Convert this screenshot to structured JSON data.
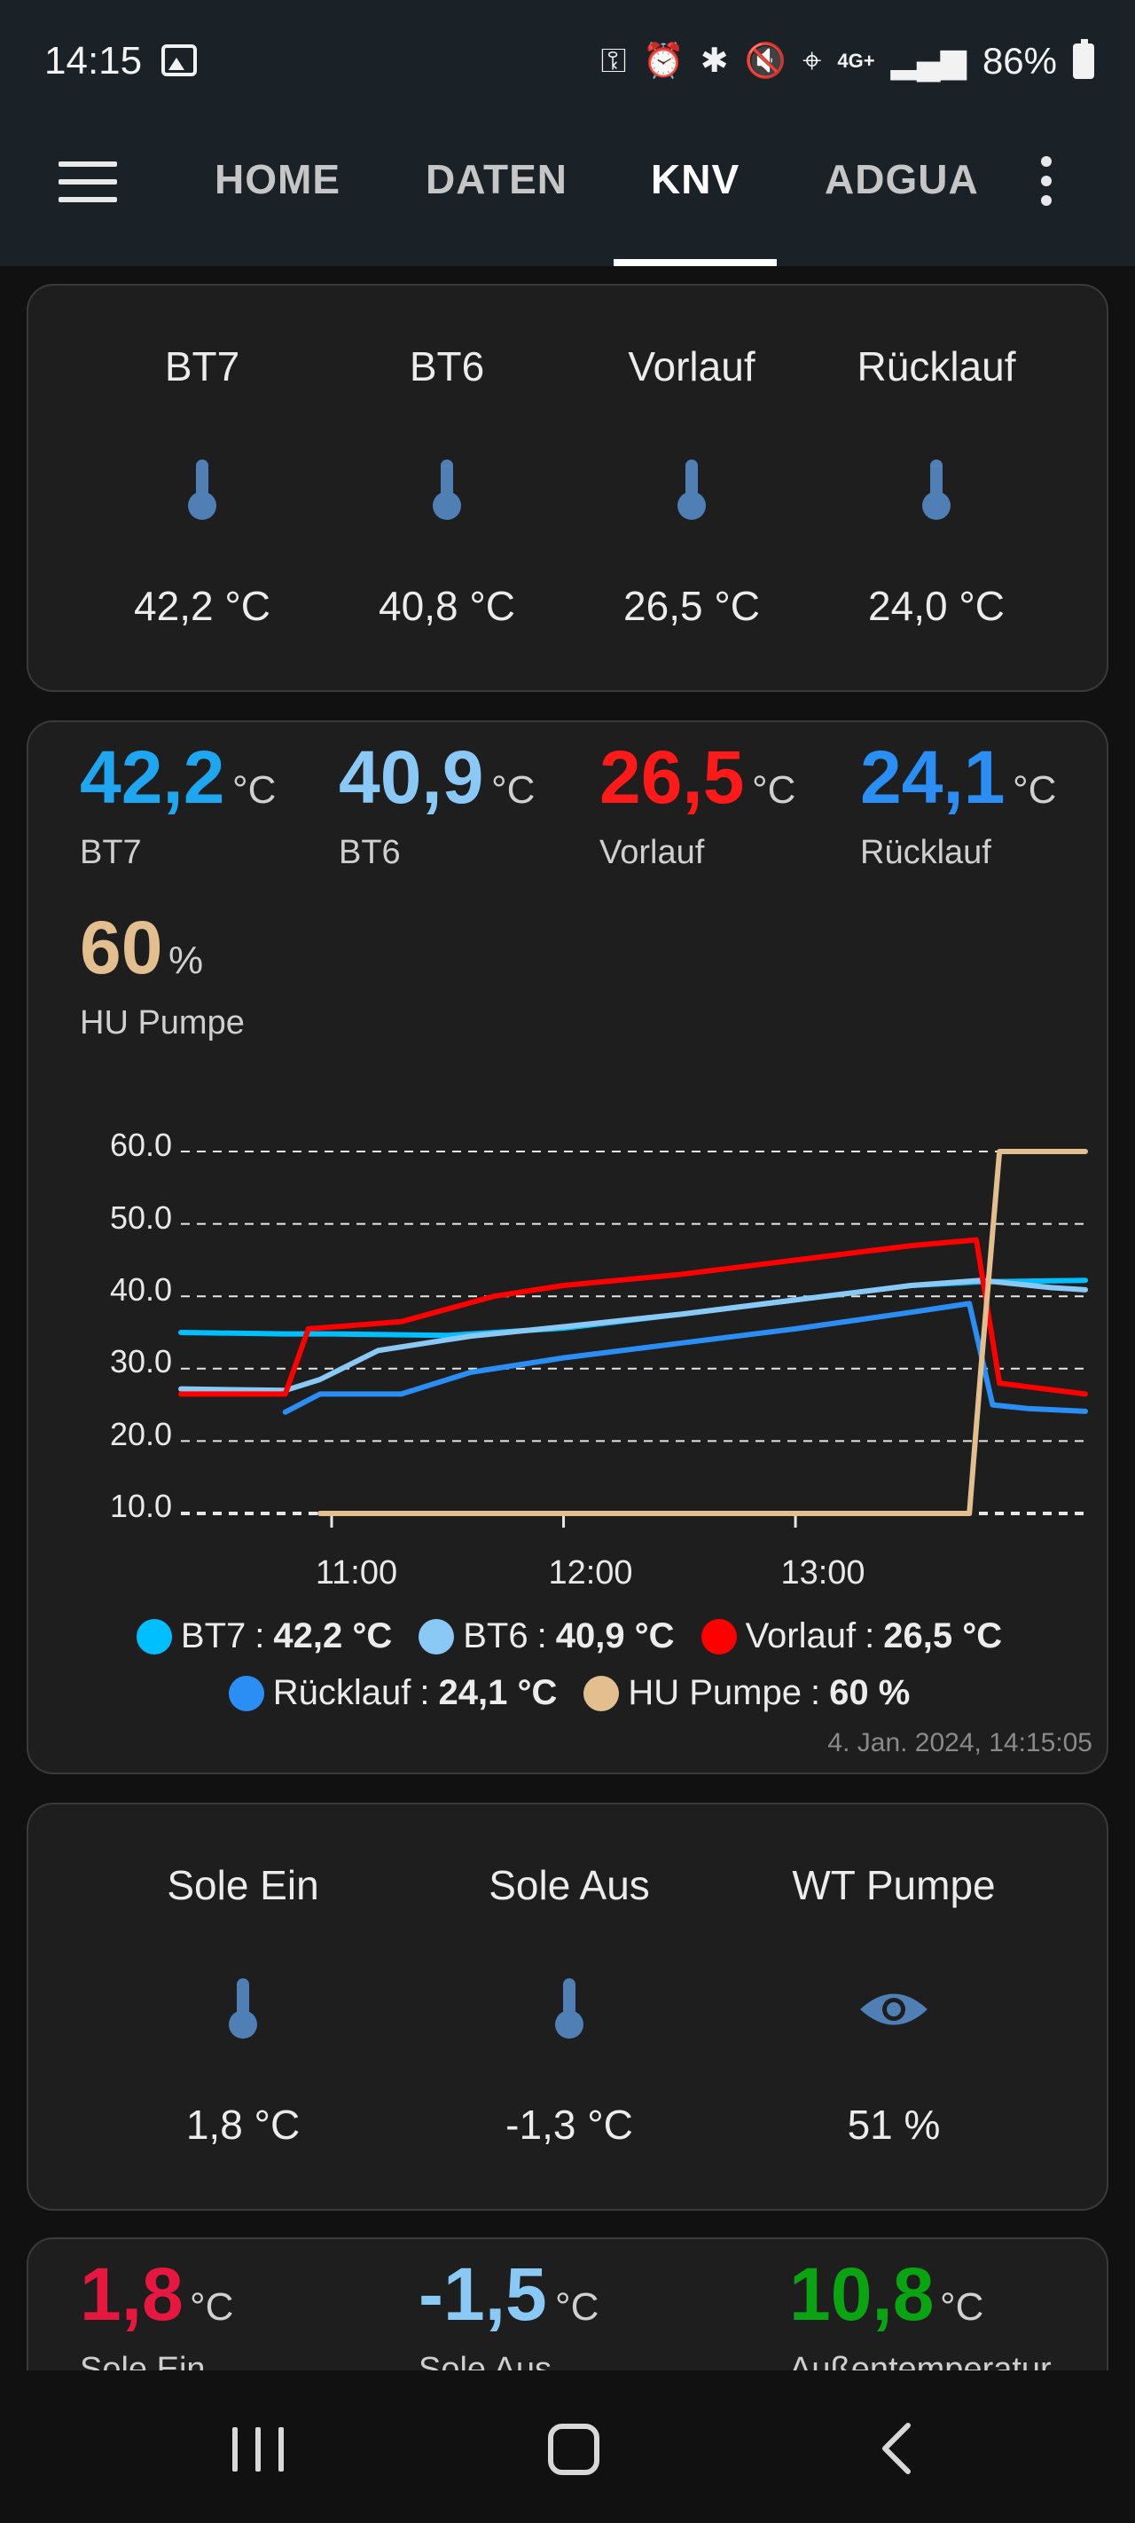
{
  "status": {
    "time": "14:15",
    "network": "4G+",
    "battery": "86%"
  },
  "tabs": [
    {
      "label": "HOME"
    },
    {
      "label": "DATEN"
    },
    {
      "label": "KNV"
    },
    {
      "label": "ADGUA"
    }
  ],
  "active_tab": "KNV",
  "temps_card": {
    "tiles": [
      {
        "label": "BT7",
        "value": "42,2 °C",
        "icon": "thermometer-icon"
      },
      {
        "label": "BT6",
        "value": "40,8 °C",
        "icon": "thermometer-icon"
      },
      {
        "label": "Vorlauf",
        "value": "26,5 °C",
        "icon": "thermometer-icon"
      },
      {
        "label": "Rücklauf",
        "value": "24,0 °C",
        "icon": "thermometer-icon"
      }
    ]
  },
  "chart_card": {
    "readings": [
      {
        "value": "42,2",
        "unit": "°C",
        "label": "BT7",
        "color": "#1ea7f0"
      },
      {
        "value": "40,9",
        "unit": "°C",
        "label": "BT6",
        "color": "#8ac8f5"
      },
      {
        "value": "26,5",
        "unit": "°C",
        "label": "Vorlauf",
        "color": "#ff1a1a"
      },
      {
        "value": "24,1",
        "unit": "°C",
        "label": "Rücklauf",
        "color": "#2b8ef5"
      },
      {
        "value": "60",
        "unit": "%",
        "label": "HU Pumpe",
        "color": "#e3bf8f"
      }
    ],
    "legend": [
      {
        "name": "BT7",
        "value": "42,2 °C",
        "color": "#00bfff"
      },
      {
        "name": "BT6",
        "value": "40,9 °C",
        "color": "#8ac8f5"
      },
      {
        "name": "Vorlauf",
        "value": "26,5 °C",
        "color": "#ff0000"
      },
      {
        "name": "Rücklauf",
        "value": "24,1 °C",
        "color": "#2b8ef5"
      },
      {
        "name": "HU Pumpe",
        "value": "60 %",
        "color": "#e3bf8f"
      }
    ],
    "timestamp": "4. Jan. 2024, 14:15:05"
  },
  "chart_data": {
    "type": "line",
    "y_ticks": [
      "60.0",
      "50.0",
      "40.0",
      "30.0",
      "20.0",
      "10.0"
    ],
    "x_ticks": [
      "11:00",
      "12:00",
      "13:00"
    ],
    "ylim": [
      10,
      60
    ],
    "grid": true,
    "x_unit": "hours",
    "series": [
      {
        "name": "BT7",
        "color": "#00bfff",
        "x": [
          10.35,
          10.8,
          11.0,
          11.5,
          12.0,
          12.5,
          13.0,
          13.5,
          13.8,
          14.25
        ],
        "values": [
          35,
          34.8,
          34.8,
          34.6,
          35.6,
          37.5,
          39.5,
          41.5,
          42.0,
          42.2
        ]
      },
      {
        "name": "BT6",
        "color": "#8ac8f5",
        "x": [
          10.35,
          10.8,
          10.95,
          11.2,
          11.6,
          12.0,
          12.5,
          13.0,
          13.5,
          13.8,
          14.1,
          14.25
        ],
        "values": [
          27.2,
          27,
          28.5,
          32.5,
          34.5,
          35.8,
          37.5,
          39.5,
          41.5,
          42.2,
          41.2,
          40.9
        ]
      },
      {
        "name": "Vorlauf",
        "color": "#ff0000",
        "x": [
          10.35,
          10.8,
          10.9,
          11.3,
          11.7,
          12.0,
          12.5,
          13.0,
          13.5,
          13.78,
          13.88,
          14.0,
          14.25
        ],
        "values": [
          26.5,
          26.5,
          35.5,
          36.5,
          40,
          41.5,
          43,
          45,
          47,
          47.8,
          28,
          27.5,
          26.5
        ]
      },
      {
        "name": "Rücklauf",
        "color": "#2b8ef5",
        "x": [
          10.8,
          10.95,
          11.3,
          11.6,
          12.0,
          12.5,
          13.0,
          13.5,
          13.75,
          13.85,
          14.0,
          14.25
        ],
        "values": [
          24,
          26.5,
          26.5,
          29.5,
          31.5,
          33.5,
          35.5,
          37.8,
          39,
          25,
          24.5,
          24.1
        ]
      },
      {
        "name": "HU Pumpe",
        "color": "#e3bf8f",
        "x": [
          10.95,
          13.75,
          13.8,
          13.88,
          14.25
        ],
        "values": [
          10,
          10,
          30,
          60,
          60
        ]
      }
    ]
  },
  "sole_card": {
    "tiles": [
      {
        "label": "Sole Ein",
        "value": "1,8 °C",
        "icon": "thermometer-icon"
      },
      {
        "label": "Sole Aus",
        "value": "-1,3 °C",
        "icon": "thermometer-icon"
      },
      {
        "label": "WT Pumpe",
        "value": "51 %",
        "icon": "eye-icon"
      }
    ]
  },
  "bottom_card": {
    "readings": [
      {
        "value": "1,8",
        "unit": "°C",
        "label": "Sole Ein",
        "color": "#e8173f"
      },
      {
        "value": "-1,5",
        "unit": "°C",
        "label": "Sole Aus",
        "color": "#8ac8f5"
      },
      {
        "value": "10,8",
        "unit": "°C",
        "label": "Außentemperatur",
        "color": "#0aa312"
      }
    ]
  }
}
